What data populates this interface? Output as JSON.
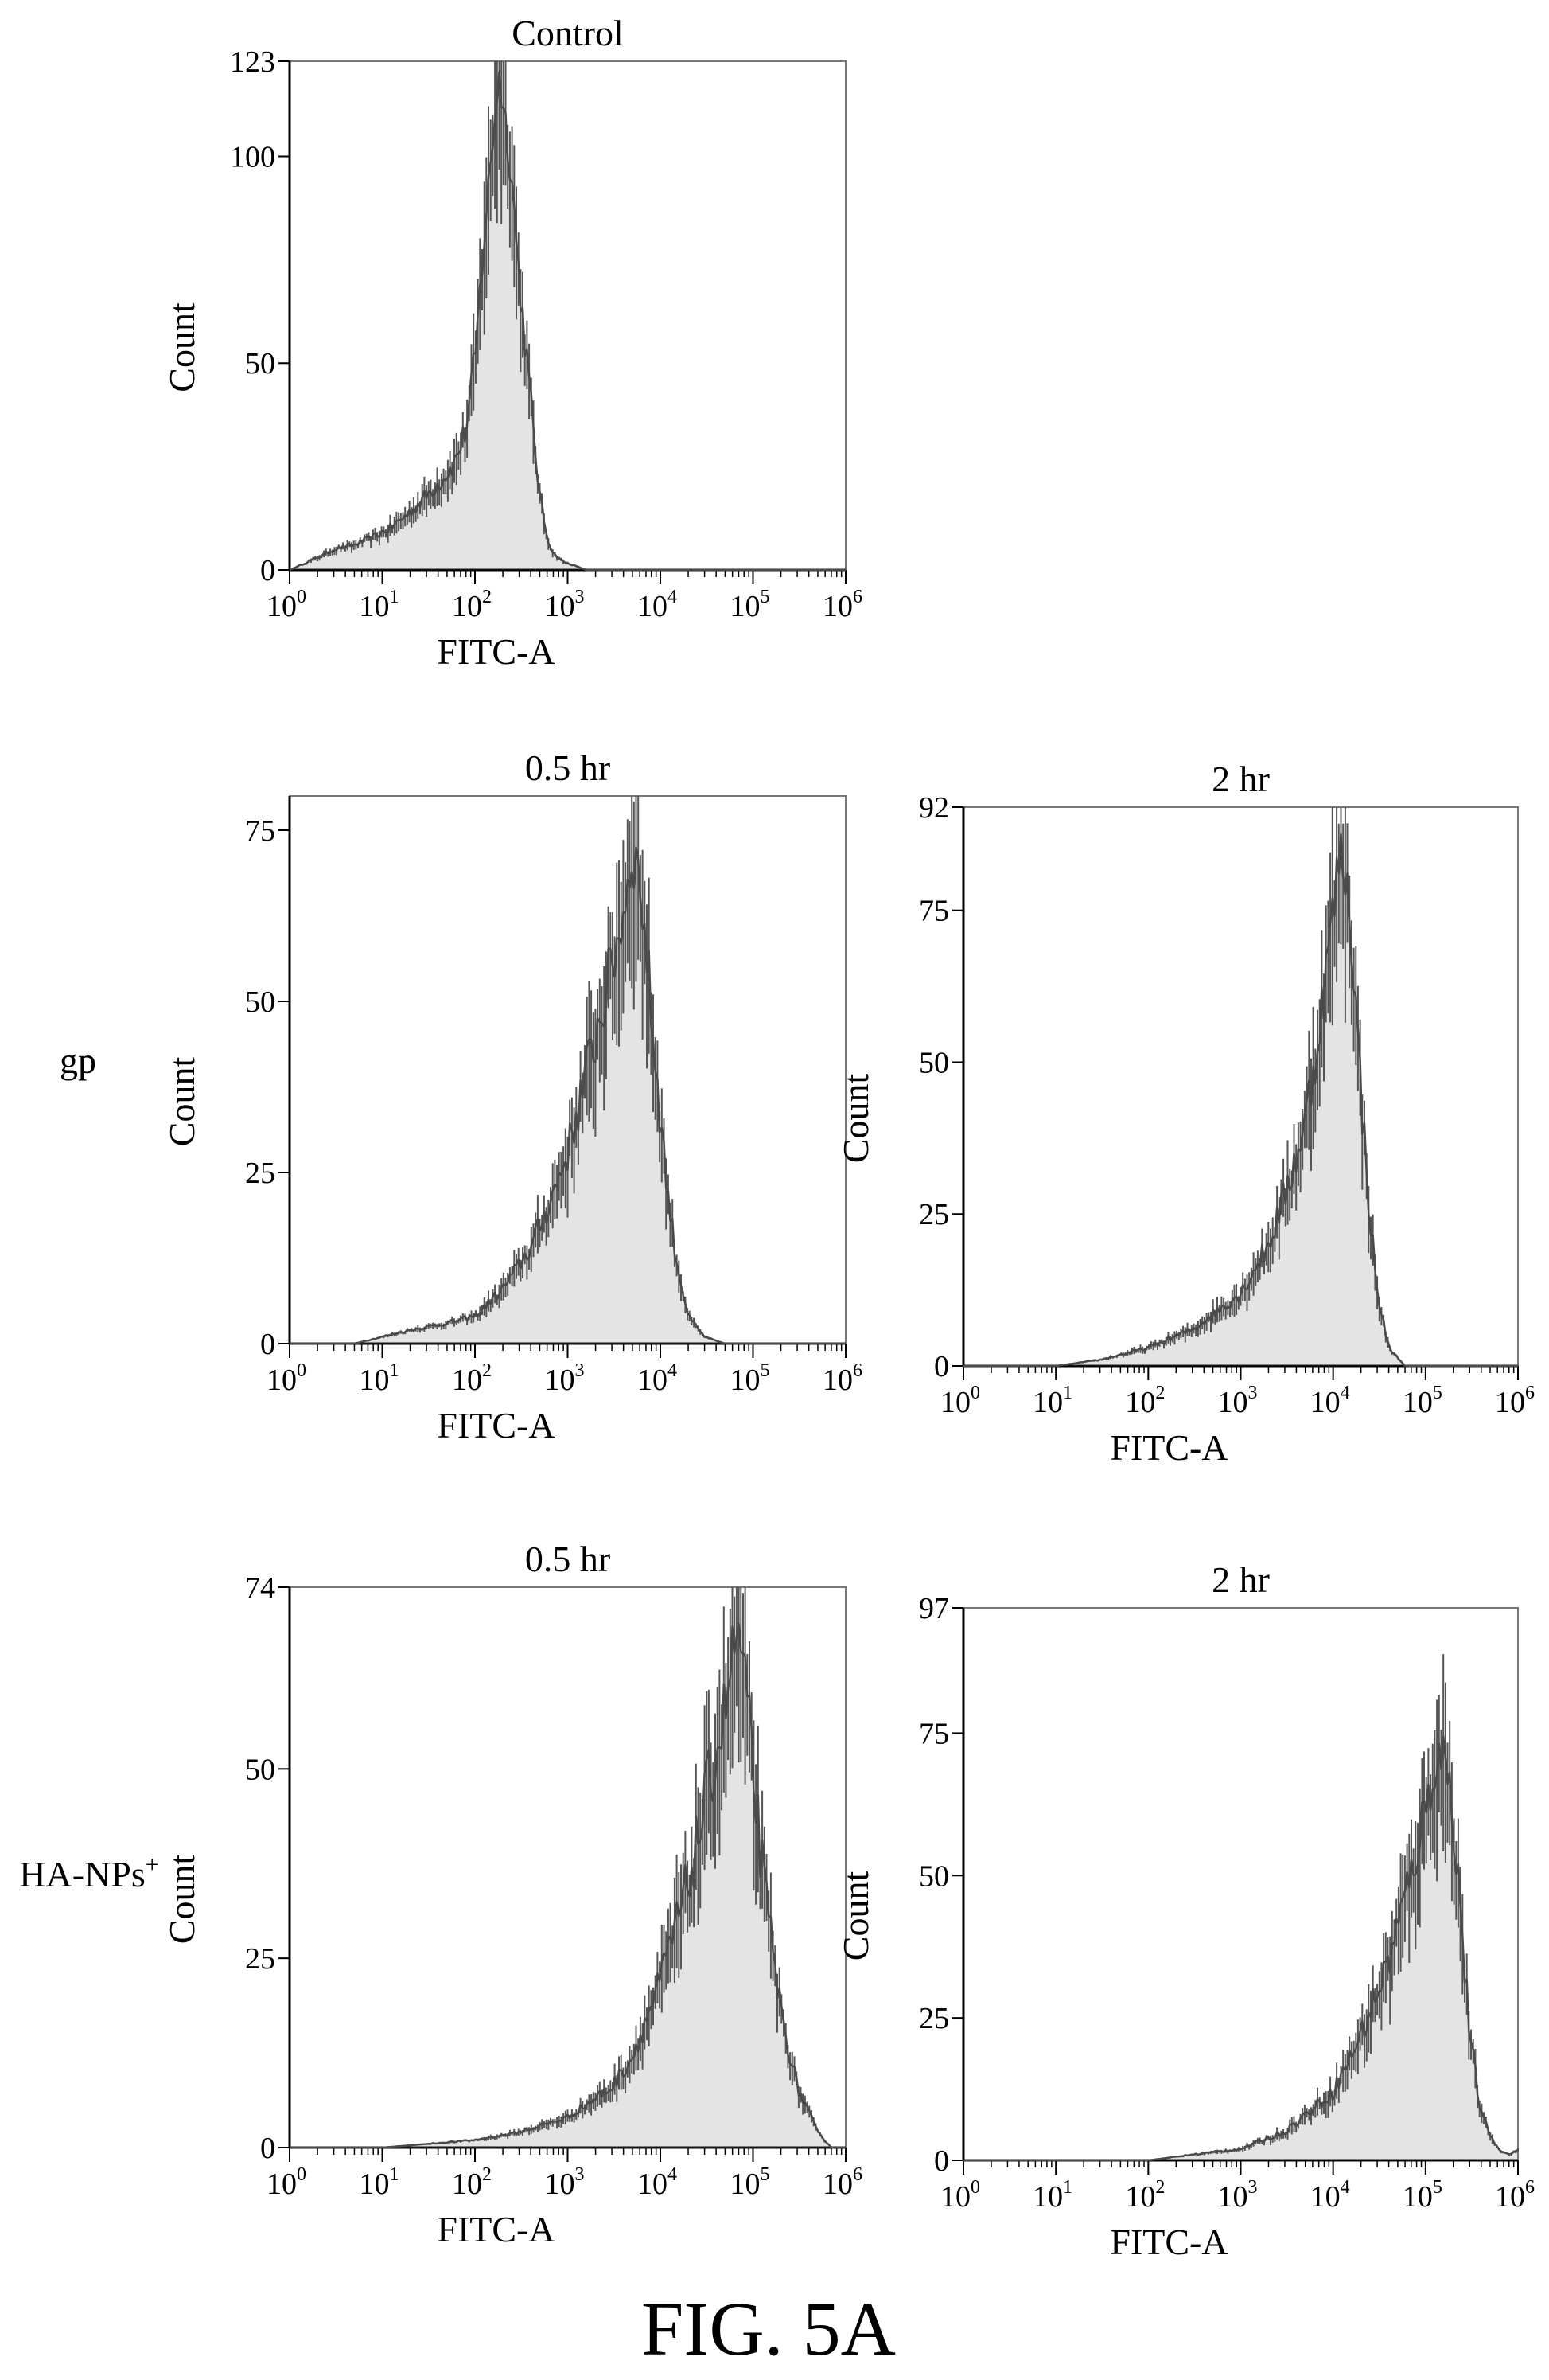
{
  "figure": {
    "caption": "FIG. 5A",
    "row_labels": {
      "gp": "gp",
      "ha_main": "HA-NPs",
      "ha_sup": "+"
    }
  },
  "chart_data": [
    {
      "id": "control",
      "type": "area",
      "title": "Control",
      "xlabel": "FITC-A",
      "ylabel": "Count",
      "x_scale": "log",
      "xlim": [
        1,
        1000000
      ],
      "ylim": [
        0,
        123
      ],
      "x_ticks": [
        1,
        10,
        100,
        1000,
        10000,
        100000,
        1000000
      ],
      "y_ticks": [
        0,
        50,
        100,
        123
      ],
      "grid": false,
      "series": [
        {
          "x": [
            1,
            2,
            3,
            5,
            8,
            12,
            20,
            30,
            45,
            60,
            80,
            100,
            120,
            150,
            180,
            210,
            250,
            300,
            350,
            420,
            500,
            600,
            700,
            900,
            1200,
            1600,
            2200
          ],
          "y": [
            0,
            3,
            5,
            6,
            8,
            10,
            14,
            18,
            22,
            26,
            34,
            50,
            75,
            100,
            120,
            110,
            95,
            70,
            55,
            35,
            18,
            8,
            4,
            2,
            1,
            0,
            0
          ]
        }
      ]
    },
    {
      "id": "gp-0.5hr",
      "type": "area",
      "title": "0.5 hr",
      "xlabel": "FITC-A",
      "ylabel": "Count",
      "x_scale": "log",
      "xlim": [
        1,
        1000000
      ],
      "ylim": [
        0,
        80
      ],
      "x_ticks": [
        1,
        10,
        100,
        1000,
        10000,
        100000,
        1000000
      ],
      "y_ticks": [
        0,
        25,
        50,
        75
      ],
      "grid": false,
      "series": [
        {
          "x": [
            1,
            5,
            10,
            20,
            50,
            100,
            200,
            400,
            700,
            1000,
            1500,
            2000,
            3000,
            4000,
            5000,
            6000,
            7000,
            9000,
            12000,
            15000,
            20000,
            30000,
            50000,
            100000
          ],
          "y": [
            0,
            0,
            1,
            2,
            3,
            4,
            8,
            14,
            22,
            28,
            38,
            45,
            55,
            63,
            72,
            68,
            58,
            40,
            22,
            12,
            4,
            1,
            0,
            0
          ]
        }
      ]
    },
    {
      "id": "gp-2hr",
      "type": "area",
      "title": "2 hr",
      "xlabel": "FITC-A",
      "ylabel": "Count",
      "x_scale": "log",
      "xlim": [
        1,
        1000000
      ],
      "ylim": [
        0,
        92
      ],
      "x_ticks": [
        1,
        10,
        100,
        1000,
        10000,
        100000,
        1000000
      ],
      "y_ticks": [
        0,
        25,
        50,
        75,
        92
      ],
      "grid": false,
      "series": [
        {
          "x": [
            1,
            10,
            30,
            100,
            300,
            1000,
            2000,
            3000,
            5000,
            7000,
            10000,
            12000,
            14000,
            16000,
            20000,
            25000,
            30000,
            40000,
            60000,
            100000
          ],
          "y": [
            0,
            0,
            1,
            3,
            6,
            12,
            20,
            28,
            40,
            55,
            75,
            85,
            80,
            70,
            45,
            25,
            12,
            3,
            0,
            0
          ]
        }
      ]
    },
    {
      "id": "ha-0.5hr",
      "type": "area",
      "title": "0.5 hr",
      "xlabel": "FITC-A",
      "ylabel": "Count",
      "x_scale": "log",
      "xlim": [
        1,
        1000000
      ],
      "ylim": [
        0,
        74
      ],
      "x_ticks": [
        1,
        10,
        100,
        1000,
        10000,
        100000,
        1000000
      ],
      "y_ticks": [
        0,
        25,
        50,
        74
      ],
      "grid": false,
      "series": [
        {
          "x": [
            1,
            10,
            100,
            300,
            1000,
            3000,
            5000,
            10000,
            20000,
            30000,
            50000,
            60000,
            70000,
            80000,
            100000,
            130000,
            200000,
            300000,
            500000,
            700000,
            1000000
          ],
          "y": [
            0,
            0,
            1,
            2,
            4,
            8,
            12,
            22,
            35,
            45,
            58,
            65,
            68,
            62,
            50,
            35,
            18,
            8,
            2,
            0,
            0
          ]
        }
      ]
    },
    {
      "id": "ha-2hr",
      "type": "area",
      "title": "2 hr",
      "xlabel": "FITC-A",
      "ylabel": "Count",
      "x_scale": "log",
      "xlim": [
        1,
        1000000
      ],
      "ylim": [
        0,
        97
      ],
      "x_ticks": [
        1,
        10,
        100,
        1000,
        10000,
        100000,
        1000000
      ],
      "y_ticks": [
        0,
        25,
        50,
        75,
        97
      ],
      "grid": false,
      "series": [
        {
          "x": [
            1,
            10,
            100,
            300,
            1000,
            3000,
            10000,
            20000,
            40000,
            70000,
            100000,
            130000,
            160000,
            200000,
            250000,
            300000,
            400000,
            600000,
            800000,
            1000000
          ],
          "y": [
            0,
            0,
            0,
            1,
            2,
            5,
            12,
            22,
            35,
            50,
            62,
            70,
            72,
            60,
            40,
            22,
            8,
            2,
            1,
            2
          ]
        }
      ]
    }
  ]
}
